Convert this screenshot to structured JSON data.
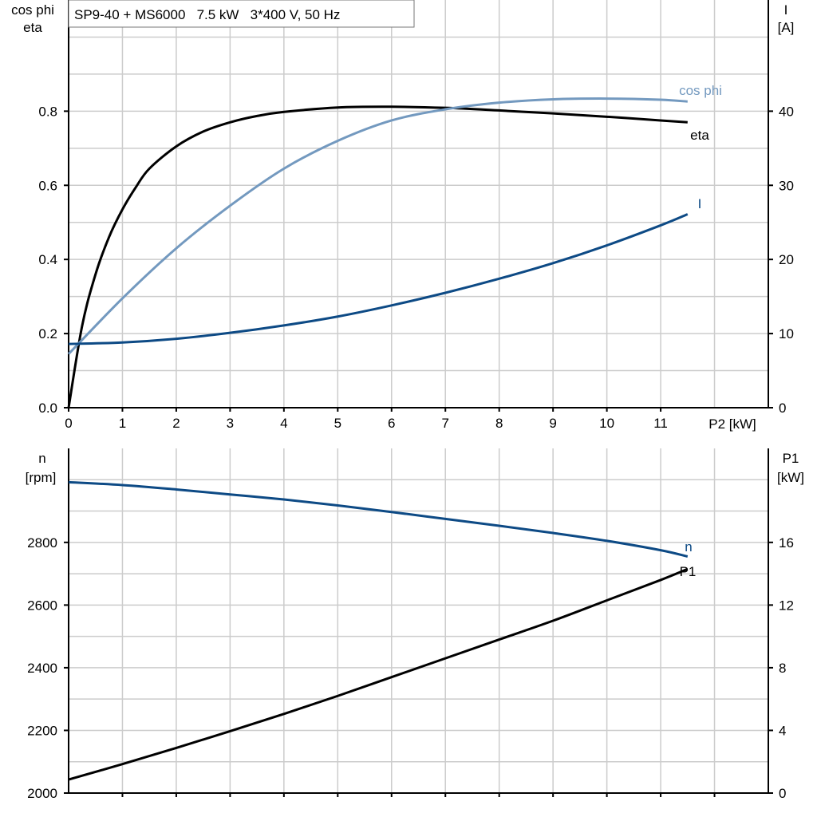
{
  "chart_data": [
    {
      "type": "line",
      "title": "SP9-40 + MS6000   7.5 kW   3*400 V, 50 Hz",
      "xlabel": "P2 [kW]",
      "ylabel_left": [
        "cos phi",
        "eta"
      ],
      "ylabel_right": [
        "I",
        "[A]"
      ],
      "xlim": [
        0,
        13
      ],
      "ylim_left": [
        0,
        1.1
      ],
      "ylim_right": [
        0,
        55
      ],
      "x_ticks": [
        0,
        1,
        2,
        3,
        4,
        5,
        6,
        7,
        8,
        9,
        10,
        11
      ],
      "y_ticks_left": [
        "0.0",
        "0.2",
        "0.4",
        "0.6",
        "0.8"
      ],
      "y_ticks_right": [
        "0",
        "10",
        "20",
        "30",
        "40"
      ],
      "grid": true,
      "colors": {
        "eta": "#000000",
        "cos phi": "#7399bf",
        "I": "#0d4a85"
      },
      "series": [
        {
          "name": "eta",
          "axis": "left",
          "x": [
            0,
            0.25,
            0.5,
            0.75,
            1,
            1.25,
            1.5,
            2,
            2.5,
            3,
            3.5,
            4,
            5,
            6,
            7,
            8,
            9,
            10,
            11,
            11.5
          ],
          "y": [
            0,
            0.22,
            0.36,
            0.46,
            0.535,
            0.595,
            0.645,
            0.705,
            0.745,
            0.77,
            0.787,
            0.798,
            0.81,
            0.812,
            0.809,
            0.802,
            0.794,
            0.785,
            0.775,
            0.77
          ]
        },
        {
          "name": "cos phi",
          "axis": "left",
          "x": [
            0,
            1,
            2,
            3,
            4,
            5,
            6,
            7,
            8,
            9,
            10,
            11,
            11.5
          ],
          "y": [
            0.145,
            0.295,
            0.43,
            0.545,
            0.645,
            0.72,
            0.775,
            0.805,
            0.823,
            0.832,
            0.834,
            0.831,
            0.826
          ]
        },
        {
          "name": "I",
          "axis": "right",
          "x": [
            0,
            1,
            2,
            3,
            4,
            5,
            6,
            7,
            8,
            9,
            10,
            11,
            11.5
          ],
          "y": [
            8.6,
            8.8,
            9.3,
            10.1,
            11.1,
            12.3,
            13.8,
            15.5,
            17.4,
            19.5,
            21.9,
            24.6,
            26.1
          ]
        }
      ]
    },
    {
      "type": "line",
      "xlabel": "",
      "ylabel_left": [
        "n",
        "[rpm]"
      ],
      "ylabel_right": [
        "P1",
        "[kW]"
      ],
      "xlim": [
        0,
        13
      ],
      "ylim_left": [
        2000,
        3100
      ],
      "ylim_right": [
        0,
        22
      ],
      "y_ticks_left": [
        "2000",
        "2200",
        "2400",
        "2600",
        "2800"
      ],
      "y_ticks_right": [
        "0",
        "4",
        "8",
        "12",
        "16"
      ],
      "grid": true,
      "colors": {
        "n": "#0d4a85",
        "P1": "#000000"
      },
      "series": [
        {
          "name": "n",
          "axis": "left",
          "x": [
            0,
            1,
            2,
            3,
            4,
            5,
            6,
            7,
            8,
            9,
            10,
            11,
            11.5
          ],
          "y": [
            2992,
            2983,
            2969,
            2953,
            2937,
            2918,
            2897,
            2875,
            2853,
            2830,
            2805,
            2775,
            2755
          ]
        },
        {
          "name": "P1",
          "axis": "right",
          "x": [
            0,
            1,
            2,
            3,
            4,
            5,
            6,
            7,
            8,
            9,
            10,
            11,
            11.5
          ],
          "y": [
            0.86,
            1.85,
            2.88,
            3.95,
            5.05,
            6.2,
            7.4,
            8.6,
            9.8,
            11.0,
            12.3,
            13.6,
            14.3
          ]
        }
      ]
    }
  ]
}
